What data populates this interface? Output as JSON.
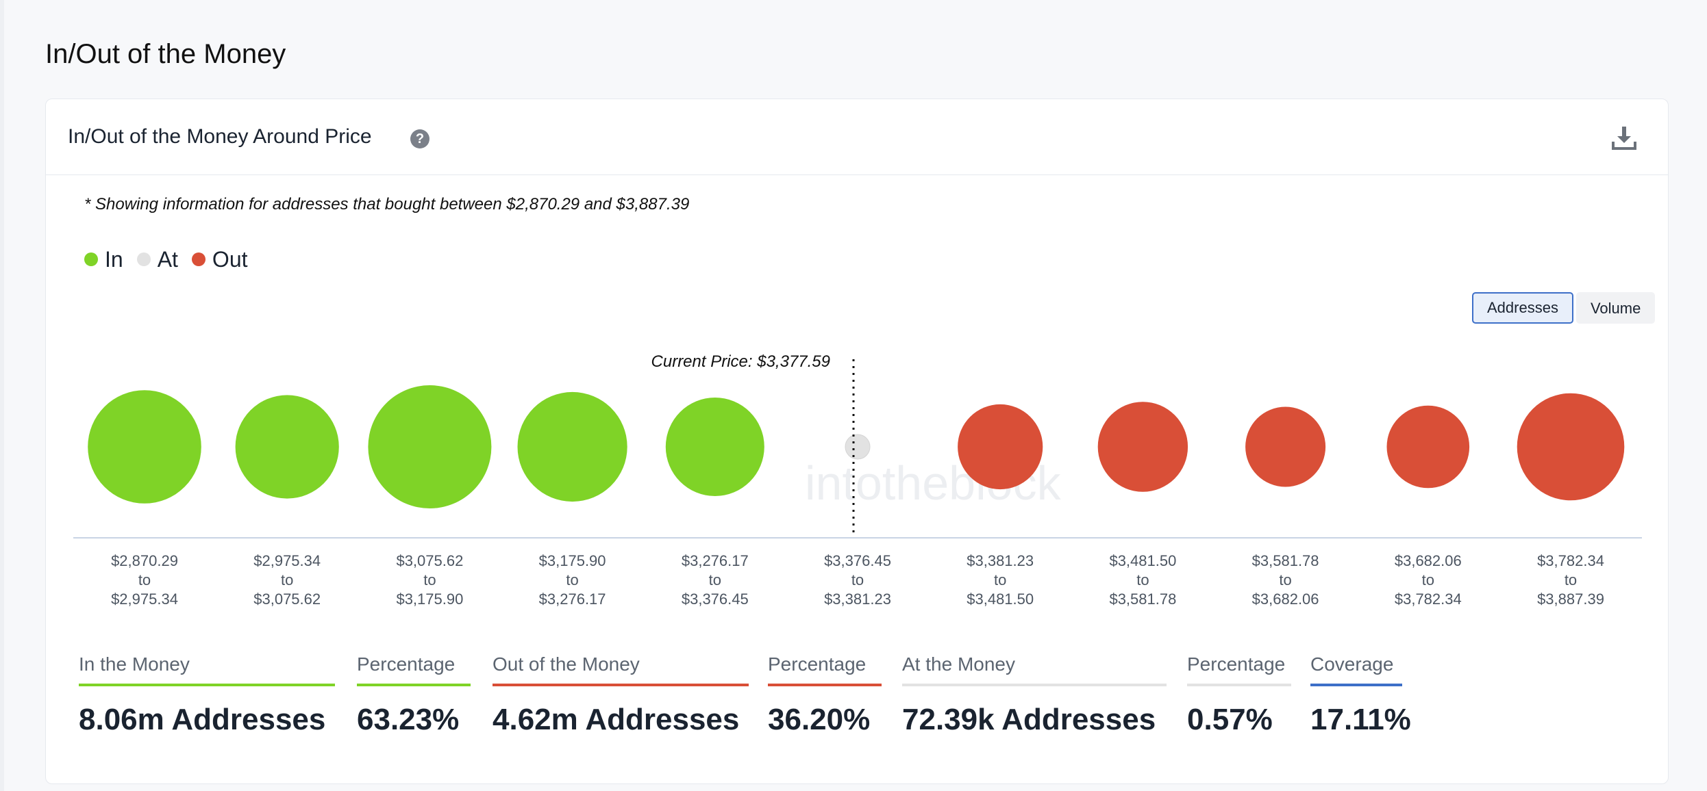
{
  "page": {
    "title": "In/Out of the Money"
  },
  "card": {
    "title": "In/Out of the Money Around Price",
    "help_icon": "question-circle-icon",
    "download_icon": "download-icon",
    "note": "* Showing information for addresses that bought between $2,870.29 and $3,887.39"
  },
  "legend": [
    {
      "label": "In",
      "color": "#7fd327"
    },
    {
      "label": "At",
      "color": "#e2e2e2"
    },
    {
      "label": "Out",
      "color": "#d94f37"
    }
  ],
  "toggle": {
    "options": [
      "Addresses",
      "Volume"
    ],
    "selected": "Addresses"
  },
  "watermark": "intotheblock",
  "chart_data": {
    "type": "scatter",
    "title": "",
    "current_price_label": "Current Price: $3,377.59",
    "bins": [
      {
        "from": "$2,870.29",
        "to_word": "to",
        "to": "$2,975.34",
        "status": "in",
        "relative_size": 0.92
      },
      {
        "from": "$2,975.34",
        "to_word": "to",
        "to": "$3,075.62",
        "status": "in",
        "relative_size": 0.84
      },
      {
        "from": "$3,075.62",
        "to_word": "to",
        "to": "$3,175.90",
        "status": "in",
        "relative_size": 1.0
      },
      {
        "from": "$3,175.90",
        "to_word": "to",
        "to": "$3,276.17",
        "status": "in",
        "relative_size": 0.89
      },
      {
        "from": "$3,276.17",
        "to_word": "to",
        "to": "$3,376.45",
        "status": "in",
        "relative_size": 0.8
      },
      {
        "from": "$3,376.45",
        "to_word": "to",
        "to": "$3,381.23",
        "status": "at",
        "relative_size": 0.2
      },
      {
        "from": "$3,381.23",
        "to_word": "to",
        "to": "$3,481.50",
        "status": "out",
        "relative_size": 0.69
      },
      {
        "from": "$3,481.50",
        "to_word": "to",
        "to": "$3,581.78",
        "status": "out",
        "relative_size": 0.73
      },
      {
        "from": "$3,581.78",
        "to_word": "to",
        "to": "$3,682.06",
        "status": "out",
        "relative_size": 0.65
      },
      {
        "from": "$3,682.06",
        "to_word": "to",
        "to": "$3,782.34",
        "status": "out",
        "relative_size": 0.67
      },
      {
        "from": "$3,782.34",
        "to_word": "to",
        "to": "$3,887.39",
        "status": "out",
        "relative_size": 0.87
      }
    ],
    "current_price_after_bin": 5
  },
  "stats": [
    {
      "label": "In the Money",
      "value": "8.06m Addresses",
      "color": "#7fd327"
    },
    {
      "label": "Percentage",
      "value": "63.23%",
      "color": "#7fd327"
    },
    {
      "label": "Out of the Money",
      "value": "4.62m Addresses",
      "color": "#d94f37"
    },
    {
      "label": "Percentage",
      "value": "36.20%",
      "color": "#d94f37"
    },
    {
      "label": "At the Money",
      "value": "72.39k Addresses",
      "color": "#e2e2e2"
    },
    {
      "label": "Percentage",
      "value": "0.57%",
      "color": "#e2e2e2"
    },
    {
      "label": "Coverage",
      "value": "17.11%",
      "color": "#3d6fc8"
    }
  ]
}
